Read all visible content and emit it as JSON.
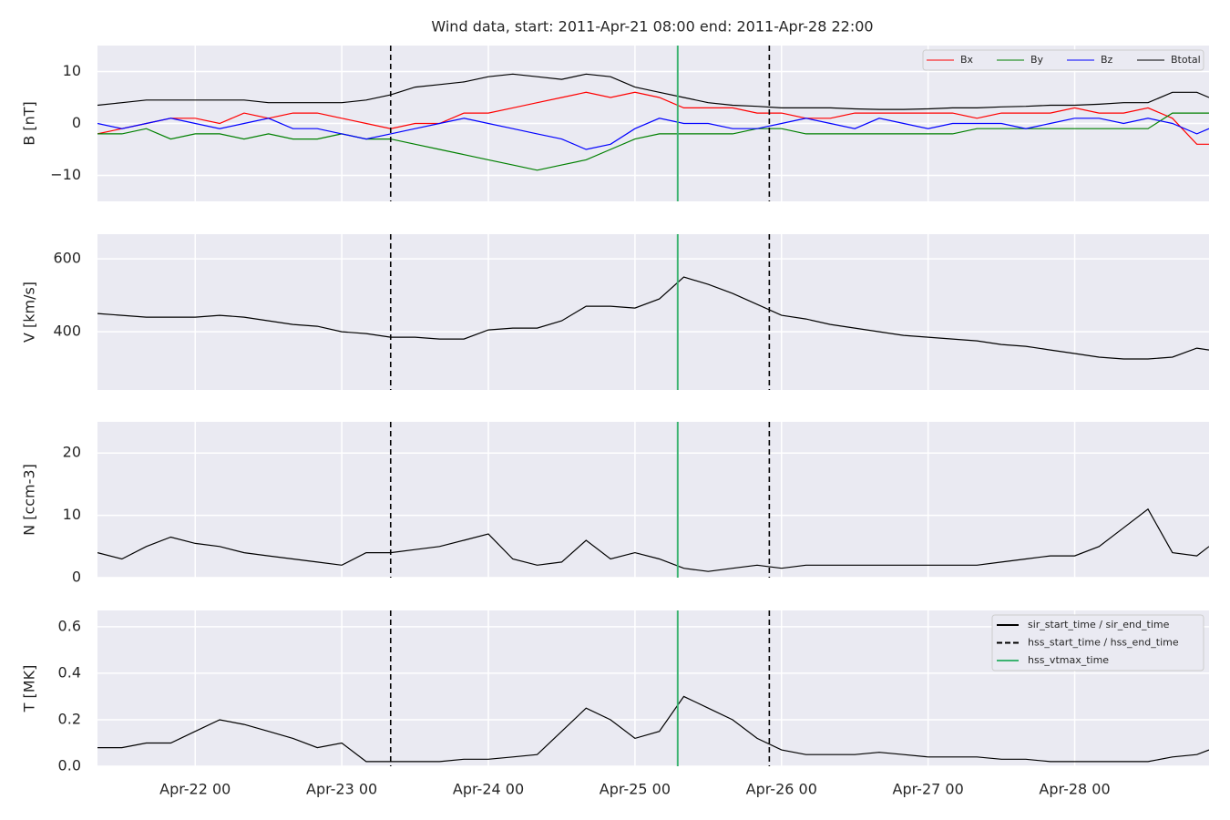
{
  "chart_data": [
    {
      "type": "line",
      "title": "Wind data, start: 2011-Apr-21 08:00  end: 2011-Apr-28 22:00",
      "ylabel": "B [nT]",
      "ylim": [
        -15,
        15
      ],
      "yticks": [
        {
          "value": -10,
          "label": "−10"
        },
        0,
        10
      ],
      "grid": true,
      "legend": "upper right",
      "series": [
        {
          "name": "Bx",
          "color": "#ff0000",
          "values": [
            -2,
            -1,
            0,
            1,
            1,
            0,
            2,
            1,
            2,
            2,
            1,
            0,
            -1,
            0,
            0,
            2,
            2,
            3,
            4,
            5,
            6,
            5,
            6,
            5,
            3,
            3,
            3,
            2,
            2,
            1,
            1,
            2,
            2,
            2,
            2,
            2,
            1,
            2,
            2,
            2,
            3,
            2,
            2,
            3,
            1,
            -4,
            -4
          ]
        },
        {
          "name": "By",
          "color": "#008000",
          "values": [
            -2,
            -2,
            -1,
            -3,
            -2,
            -2,
            -3,
            -2,
            -3,
            -3,
            -2,
            -3,
            -3,
            -4,
            -5,
            -6,
            -7,
            -8,
            -9,
            -8,
            -7,
            -5,
            -3,
            -2,
            -2,
            -2,
            -2,
            -1,
            -1,
            -2,
            -2,
            -2,
            -2,
            -2,
            -2,
            -2,
            -1,
            -1,
            -1,
            -1,
            -1,
            -1,
            -1,
            -1,
            2,
            2,
            2
          ]
        },
        {
          "name": "Bz",
          "color": "#0000ff",
          "values": [
            0,
            -1,
            0,
            1,
            0,
            -1,
            0,
            1,
            -1,
            -1,
            -2,
            -3,
            -2,
            -1,
            0,
            1,
            0,
            -1,
            -2,
            -3,
            -5,
            -4,
            -1,
            1,
            0,
            0,
            -1,
            -1,
            0,
            1,
            0,
            -1,
            1,
            0,
            -1,
            0,
            0,
            0,
            -1,
            0,
            1,
            1,
            0,
            1,
            0,
            -2,
            -1
          ]
        },
        {
          "name": "Btotal",
          "color": "#000000",
          "values": [
            3.5,
            4,
            4.5,
            4.5,
            4.5,
            4.5,
            4.5,
            4,
            4,
            4,
            4,
            4.5,
            5.5,
            7,
            7.5,
            8,
            9,
            9.5,
            9,
            8.5,
            9.5,
            9,
            7,
            6,
            5,
            4,
            3.5,
            3.3,
            3,
            3,
            3,
            2.8,
            2.7,
            2.7,
            2.8,
            3,
            3,
            3.2,
            3.3,
            3.5,
            3.5,
            3.7,
            4,
            4,
            6,
            6,
            5
          ]
        }
      ]
    },
    {
      "type": "line",
      "ylabel": "V [km/s]",
      "ylim": [
        240,
        668
      ],
      "yticks": [
        400,
        600
      ],
      "grid": true,
      "series": [
        {
          "color": "#000000",
          "values": [
            450,
            445,
            440,
            440,
            440,
            445,
            440,
            430,
            420,
            415,
            400,
            395,
            385,
            385,
            380,
            380,
            405,
            410,
            410,
            430,
            470,
            470,
            465,
            490,
            550,
            530,
            505,
            475,
            445,
            435,
            420,
            410,
            400,
            390,
            385,
            380,
            375,
            365,
            360,
            350,
            340,
            330,
            325,
            325,
            330,
            355,
            350
          ]
        }
      ]
    },
    {
      "type": "line",
      "ylabel": "N [ccm-3]",
      "ylim": [
        0,
        25
      ],
      "yticks": [
        0,
        10,
        20
      ],
      "grid": true,
      "series": [
        {
          "color": "#000000",
          "values": [
            4,
            3,
            5,
            6.5,
            5.5,
            5,
            4,
            3.5,
            3,
            2.5,
            2,
            4,
            4,
            4.5,
            5,
            6,
            7,
            3,
            2,
            2.5,
            6,
            3,
            4,
            3,
            1.5,
            1,
            1.5,
            2,
            1.5,
            2,
            2,
            2,
            2,
            2,
            2,
            2,
            2,
            2.5,
            3,
            3.5,
            3.5,
            5,
            8,
            11,
            4,
            3.5,
            5
          ]
        }
      ]
    },
    {
      "type": "line",
      "ylabel": "T [MK]",
      "ylim": [
        0,
        0.67
      ],
      "yticks": [
        {
          "value": 0,
          "label": "0.0"
        },
        0.2,
        0.4,
        0.6
      ],
      "grid": true,
      "legend": "upper right",
      "x": [
        "Apr-21 08",
        "Apr-21 12",
        "Apr-21 16",
        "Apr-21 20",
        "Apr-22 00",
        "Apr-22 04",
        "Apr-22 08",
        "Apr-22 12",
        "Apr-22 16",
        "Apr-22 20",
        "Apr-23 00",
        "Apr-23 04",
        "Apr-23 08",
        "Apr-23 12",
        "Apr-23 16",
        "Apr-23 20",
        "Apr-24 00",
        "Apr-24 04",
        "Apr-24 08",
        "Apr-24 12",
        "Apr-24 16",
        "Apr-24 20",
        "Apr-25 00",
        "Apr-25 04",
        "Apr-25 08",
        "Apr-25 12",
        "Apr-25 16",
        "Apr-25 20",
        "Apr-26 00",
        "Apr-26 04",
        "Apr-26 08",
        "Apr-26 12",
        "Apr-26 16",
        "Apr-26 20",
        "Apr-27 00",
        "Apr-27 04",
        "Apr-27 08",
        "Apr-27 12",
        "Apr-27 16",
        "Apr-27 20",
        "Apr-28 00",
        "Apr-28 04",
        "Apr-28 08",
        "Apr-28 12",
        "Apr-28 16",
        "Apr-28 20",
        "Apr-28 22"
      ],
      "xlim": [
        "Apr-21 08",
        "Apr-28 22"
      ],
      "xticks": [
        "Apr-22 00",
        "Apr-23 00",
        "Apr-24 00",
        "Apr-25 00",
        "Apr-26 00",
        "Apr-27 00",
        "Apr-28 00"
      ],
      "series": [
        {
          "color": "#000000",
          "values": [
            0.08,
            0.08,
            0.1,
            0.1,
            0.15,
            0.2,
            0.18,
            0.15,
            0.12,
            0.08,
            0.1,
            0.02,
            0.02,
            0.02,
            0.02,
            0.03,
            0.03,
            0.04,
            0.05,
            0.15,
            0.25,
            0.2,
            0.12,
            0.15,
            0.3,
            0.25,
            0.2,
            0.12,
            0.07,
            0.05,
            0.05,
            0.05,
            0.06,
            0.05,
            0.04,
            0.04,
            0.04,
            0.03,
            0.03,
            0.02,
            0.02,
            0.02,
            0.02,
            0.02,
            0.04,
            0.05,
            0.07
          ]
        }
      ],
      "vlines": [
        {
          "name": "sir_start_time / sir_end_time",
          "color": "#000000",
          "style": "solid",
          "x": []
        },
        {
          "name": "hss_start_time / hss_end_time",
          "color": "#000000",
          "style": "dashed",
          "x": [
            "Apr-23 08",
            "Apr-25 22"
          ]
        },
        {
          "name": "hss_vtmax_time",
          "color": "#3cb371",
          "style": "solid",
          "x": [
            "Apr-25 07"
          ]
        }
      ]
    }
  ]
}
